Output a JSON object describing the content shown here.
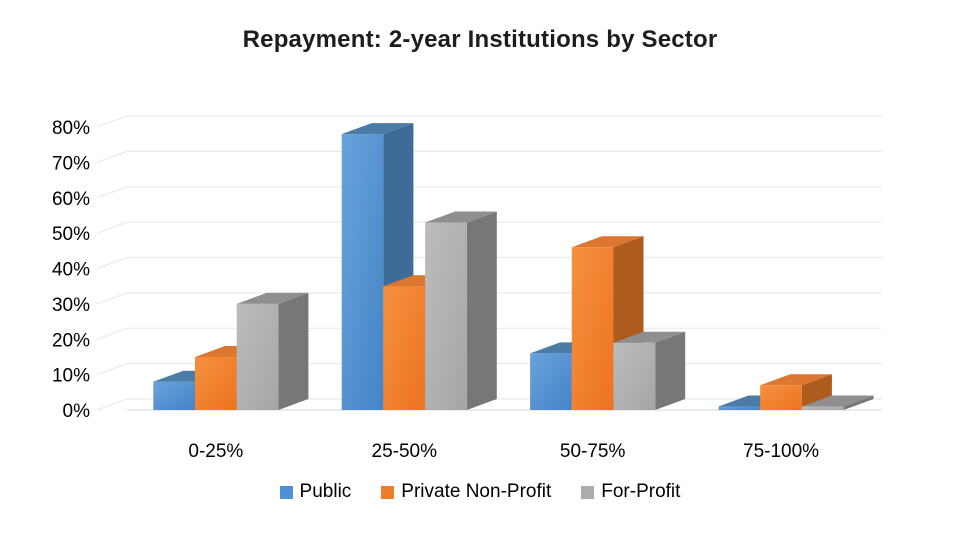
{
  "title": "Repayment: 2-year Institutions by Sector",
  "chart_data": {
    "type": "bar",
    "style": "3d-grouped",
    "title": "Repayment: 2-year Institutions by Sector",
    "categories": [
      "0-25%",
      "25-50%",
      "50-75%",
      "75-100%"
    ],
    "series": [
      {
        "name": "Public",
        "values": [
          8,
          78,
          16,
          1
        ],
        "face_colors": {
          "front_from": "#69A3DC",
          "front_to": "#4583C6",
          "top": "#4C7BA6",
          "side": "#3D6C99",
          "swatch": "#4E91D4"
        }
      },
      {
        "name": "Private Non-Profit",
        "values": [
          15,
          35,
          46,
          7
        ],
        "face_colors": {
          "front_from": "#F5903F",
          "front_to": "#EC7420",
          "top": "#DD7630",
          "side": "#AE5B1E",
          "swatch": "#F07D2B"
        }
      },
      {
        "name": "For-Profit",
        "values": [
          30,
          53,
          19,
          1
        ],
        "face_colors": {
          "front_from": "#BDBDBD",
          "front_to": "#A5A5A5",
          "top": "#8F8F8F",
          "side": "#777777",
          "swatch": "#ACACAC"
        }
      }
    ],
    "xlabel": "",
    "ylabel": "",
    "ylim": [
      0,
      80
    ],
    "ytick_step": 10,
    "ytick_labels": [
      "0%",
      "10%",
      "20%",
      "30%",
      "40%",
      "50%",
      "60%",
      "70%",
      "80%"
    ],
    "grid": true,
    "legend_position": "bottom",
    "axis_text_color": "#000000",
    "gridline_color": "#ebebeb",
    "baseline_color": "#e0e0e0",
    "background": "#ffffff"
  }
}
